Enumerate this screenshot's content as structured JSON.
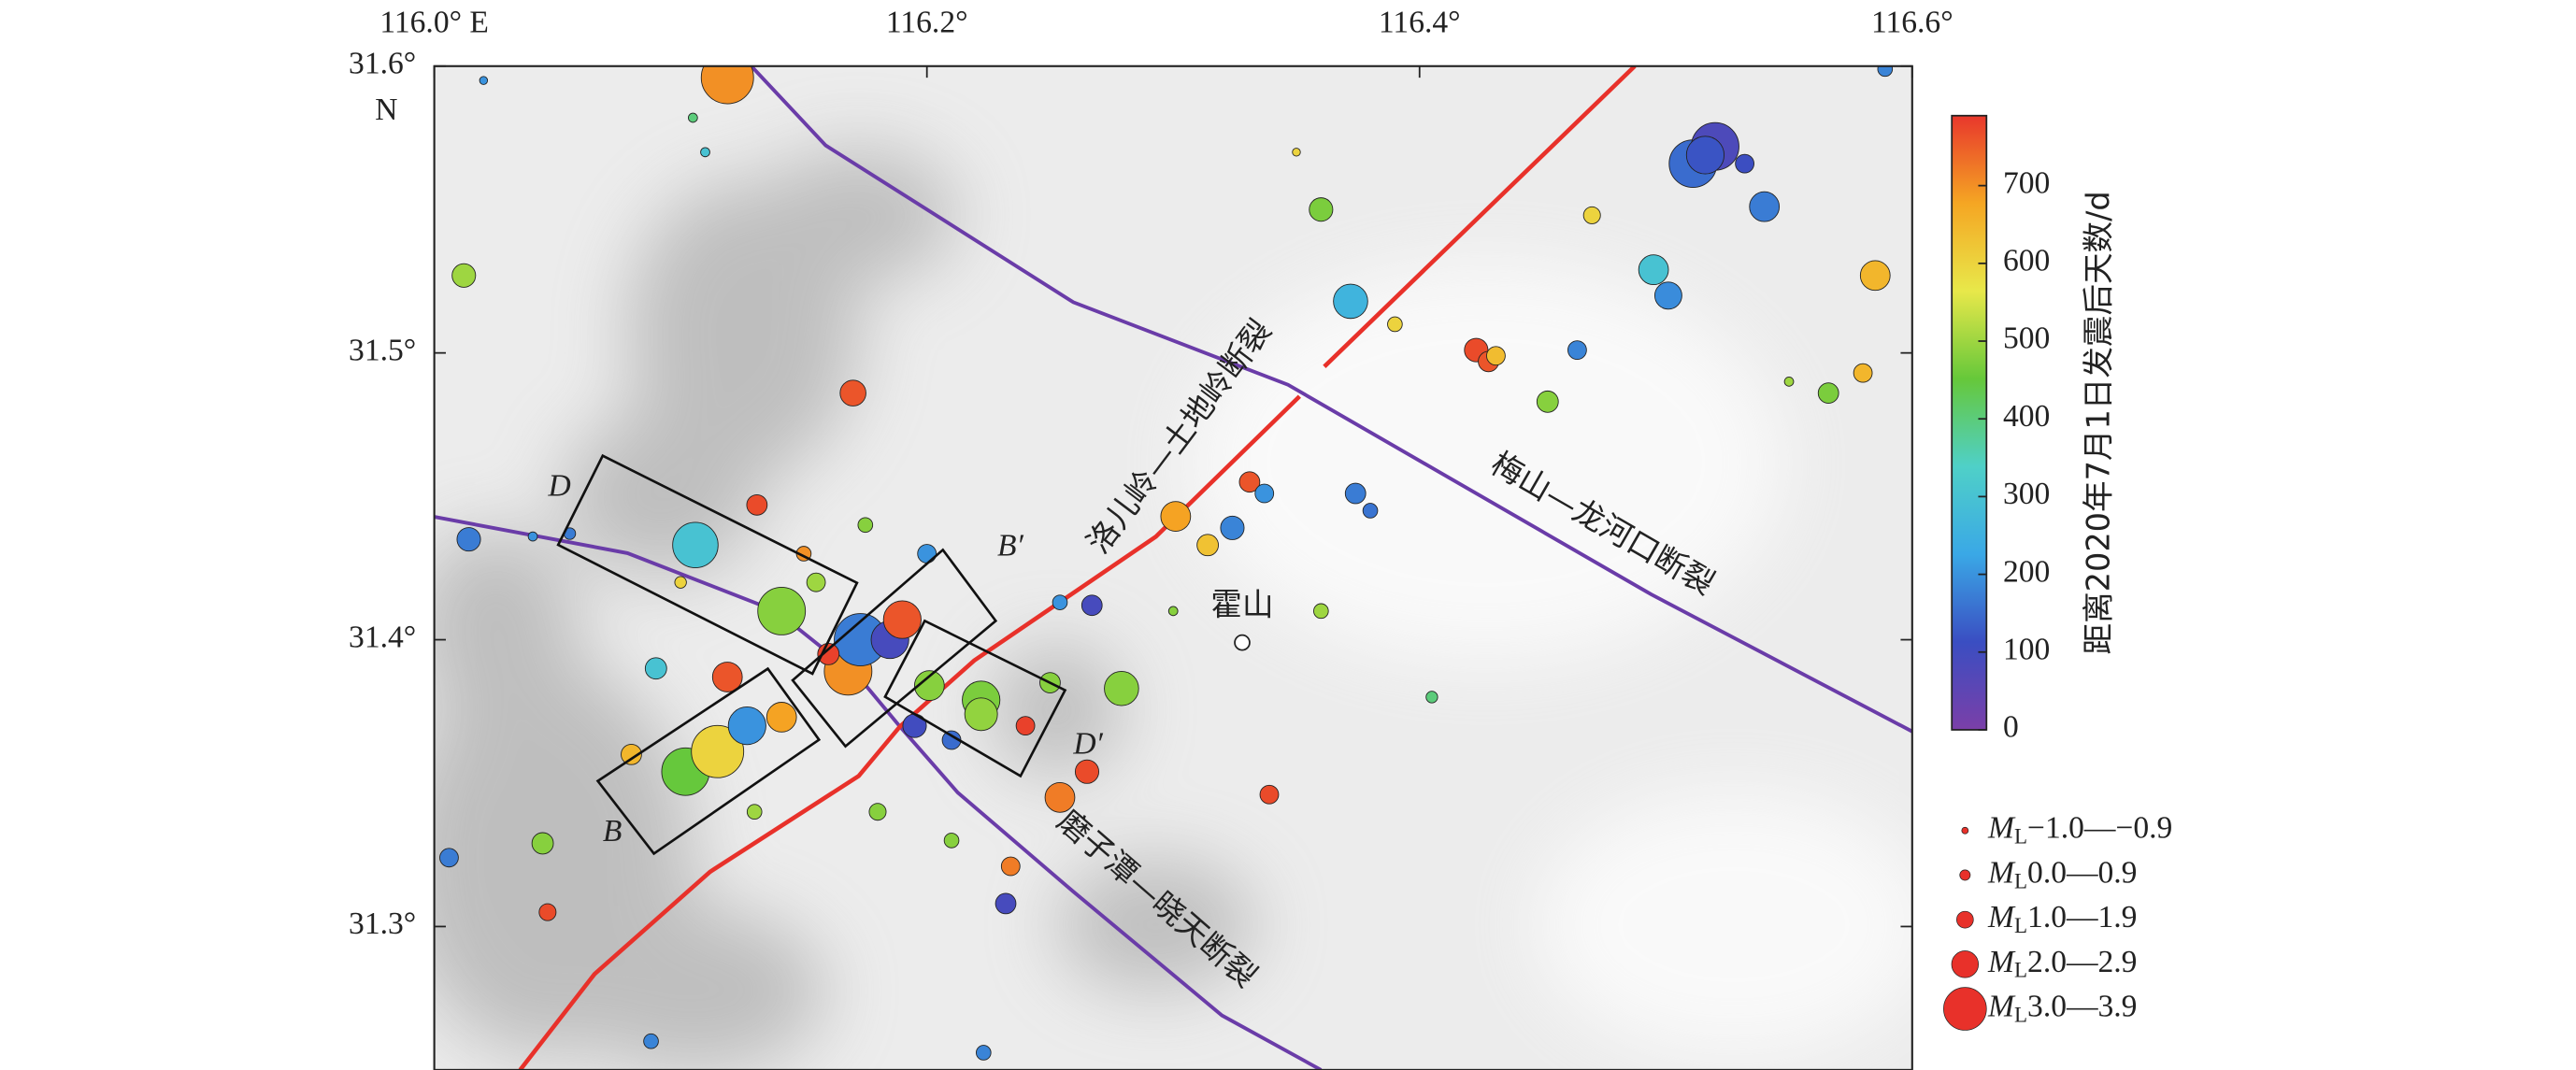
{
  "chart_data": {
    "type": "scatter",
    "xlim": [
      116.0,
      116.6
    ],
    "ylim": [
      31.25,
      31.6
    ],
    "xticks": [
      {
        "value": 116.0,
        "label": "116.0° E"
      },
      {
        "value": 116.2,
        "label": "116.2°"
      },
      {
        "value": 116.4,
        "label": "116.4°"
      },
      {
        "value": 116.6,
        "label": "116.6°"
      }
    ],
    "yticks": [
      {
        "value": 31.6,
        "label": "31.6°"
      },
      {
        "value": 31.5,
        "label": "31.5°"
      },
      {
        "value": 31.4,
        "label": "31.4°"
      },
      {
        "value": 31.3,
        "label": "31.3°"
      }
    ],
    "y_axis_label": "N",
    "colorbar_label": "距离2020年7月1日发震后天数/d",
    "clim": [
      0,
      790
    ],
    "cticks": [
      0,
      100,
      200,
      300,
      400,
      500,
      600,
      700
    ],
    "colormap": [
      "#7b3fa8",
      "#3a4ec2",
      "#3aa8e6",
      "#4fd0c8",
      "#66c83a",
      "#e8e84a",
      "#f5a623",
      "#e8372c"
    ],
    "legend_symbol": "M",
    "legend_subscript": "L",
    "legend_color": "#e8312a",
    "magnitude_legend": [
      {
        "value": -1.0,
        "label": "−1.0—−0.9"
      },
      {
        "value": 0.0,
        "label": "0.0—0.9"
      },
      {
        "value": 1.0,
        "label": "1.0—1.9"
      },
      {
        "value": 2.0,
        "label": "2.0—2.9"
      },
      {
        "value": 3.0,
        "label": "3.0—3.9"
      }
    ],
    "fault_labels": [
      "洛儿岭—土地岭断裂",
      "梅山—龙河口断裂",
      "磨子潭—晓天断裂"
    ],
    "profile_labels": [
      "D",
      "B′",
      "B",
      "D′"
    ],
    "place": {
      "name": "霍山",
      "lon": 116.328,
      "lat": 31.399
    },
    "points": {
      "lon": [
        116.119,
        116.511,
        116.52,
        116.516,
        116.532,
        116.54,
        116.495,
        116.501,
        116.585,
        116.372,
        116.36,
        116.012,
        116.17,
        116.423,
        116.428,
        116.431,
        116.464,
        116.452,
        116.566,
        116.58,
        116.301,
        116.324,
        116.314,
        116.331,
        116.337,
        116.374,
        116.38,
        116.106,
        116.141,
        116.102,
        116.115,
        116.127,
        116.168,
        116.173,
        116.185,
        116.19,
        116.201,
        116.222,
        116.222,
        116.279,
        116.265,
        116.254,
        116.141,
        116.119,
        116.339,
        116.006,
        116.044,
        116.046,
        116.014,
        116.131,
        116.232,
        116.234,
        116.254,
        116.267,
        116.589,
        116.223,
        116.088,
        116.155,
        116.16,
        116.21,
        116.195,
        116.09,
        116.08,
        116.25,
        116.24,
        116.2,
        116.175,
        116.15,
        116.1,
        116.13,
        116.18,
        116.055,
        116.04,
        116.21,
        116.3,
        116.36,
        116.405,
        116.11,
        116.105,
        116.02,
        116.35,
        116.39,
        116.47,
        116.55
      ],
      "lat": [
        31.596,
        31.566,
        31.572,
        31.569,
        31.566,
        31.551,
        31.529,
        31.52,
        31.527,
        31.518,
        31.55,
        31.527,
        31.486,
        31.501,
        31.497,
        31.499,
        31.501,
        31.483,
        31.486,
        31.493,
        31.443,
        31.439,
        31.433,
        31.455,
        31.451,
        31.451,
        31.445,
        31.433,
        31.41,
        31.354,
        31.361,
        31.37,
        31.389,
        31.4,
        31.4,
        31.407,
        31.384,
        31.379,
        31.374,
        31.383,
        31.354,
        31.345,
        31.373,
        31.387,
        31.346,
        31.324,
        31.329,
        31.305,
        31.435,
        31.447,
        31.308,
        31.321,
        31.413,
        31.412,
        31.599,
        31.256,
        31.26,
        31.42,
        31.395,
        31.365,
        31.37,
        31.39,
        31.36,
        31.385,
        31.37,
        31.43,
        31.44,
        31.43,
        31.42,
        31.34,
        31.34,
        31.437,
        31.436,
        31.33,
        31.41,
        31.41,
        31.38,
        31.57,
        31.582,
        31.595,
        31.57,
        31.51,
        31.548,
        31.49
      ],
      "days": [
        700,
        150,
        80,
        120,
        110,
        170,
        300,
        190,
        650,
        260,
        470,
        500,
        760,
        770,
        760,
        640,
        180,
        480,
        470,
        650,
        680,
        180,
        630,
        760,
        200,
        170,
        160,
        300,
        480,
        450,
        600,
        200,
        700,
        170,
        90,
        760,
        480,
        470,
        490,
        480,
        770,
        720,
        680,
        760,
        770,
        170,
        480,
        770,
        170,
        770,
        90,
        720,
        200,
        90,
        180,
        180,
        180,
        500,
        780,
        150,
        100,
        300,
        650,
        480,
        780,
        200,
        480,
        700,
        600,
        500,
        480,
        170,
        200,
        480,
        480,
        500,
        400,
        300,
        400,
        200,
        600,
        600,
        600,
        500
      ],
      "mag": [
        3.2,
        3.0,
        3.0,
        2.5,
        1.0,
        2.0,
        2.0,
        1.8,
        2.0,
        2.3,
        1.5,
        1.5,
        1.7,
        1.5,
        1.2,
        1.0,
        1.0,
        1.3,
        1.2,
        1.0,
        2.0,
        1.5,
        1.3,
        1.2,
        1.0,
        1.2,
        0.5,
        2.9,
        3.0,
        3.0,
        3.2,
        2.5,
        3.0,
        3.2,
        2.5,
        2.5,
        2.0,
        2.5,
        2.2,
        2.3,
        1.5,
        2.0,
        2.0,
        2.0,
        1.0,
        1.0,
        1.3,
        0.8,
        1.5,
        1.2,
        1.2,
        1.0,
        0.5,
        1.2,
        0.5,
        0.5,
        0.5,
        1.0,
        1.3,
        1.0,
        1.5,
        1.3,
        1.2,
        1.2,
        1.0,
        1.0,
        0.5,
        0.5,
        0.0,
        0.5,
        0.8,
        0.0,
        -0.5,
        0.5,
        -0.5,
        0.5,
        0.0,
        -0.5,
        -0.5,
        -0.8,
        -0.8,
        0.5,
        0.8,
        -0.5
      ]
    }
  }
}
